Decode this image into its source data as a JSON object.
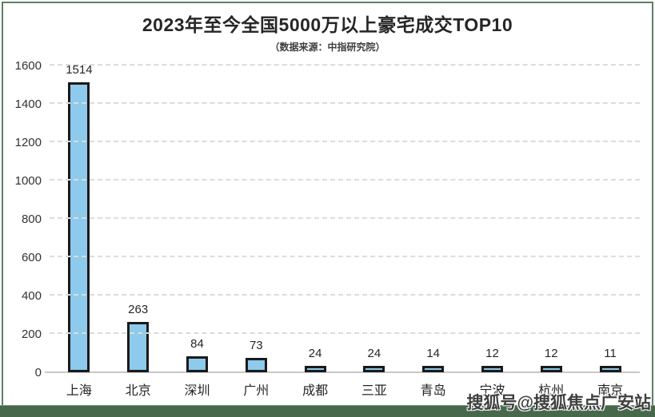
{
  "header": {
    "title": "2023年至今全国5000万以上豪宅成交TOP10",
    "subtitle": "（数据来源：中指研究院）"
  },
  "chart_data": {
    "type": "bar",
    "title": "2023年至今全国5000万以上豪宅成交TOP10",
    "subtitle": "（数据来源：中指研究院）",
    "categories": [
      "上海",
      "北京",
      "深圳",
      "广州",
      "成都",
      "三亚",
      "青岛",
      "宁波",
      "杭州",
      "南京"
    ],
    "values": [
      1514,
      263,
      84,
      73,
      24,
      24,
      14,
      12,
      12,
      11
    ],
    "xlabel": "",
    "ylabel": "",
    "ylim": [
      0,
      1600
    ],
    "yticks": [
      0,
      200,
      400,
      600,
      800,
      1000,
      1200,
      1400,
      1600
    ],
    "grid": "horizontal-dashed",
    "legend": "none",
    "value_labels": true
  },
  "watermark": {
    "text": "搜狐号@搜狐焦点广安站"
  },
  "colors": {
    "frame_green": "#5e7f63",
    "footer_green": "#47684b",
    "bar_fill": "#8dcaeb",
    "bar_border": "#1a1a1a",
    "gridline": "#dcdcdc",
    "axis": "#c8c8c8",
    "text": "#262626"
  }
}
